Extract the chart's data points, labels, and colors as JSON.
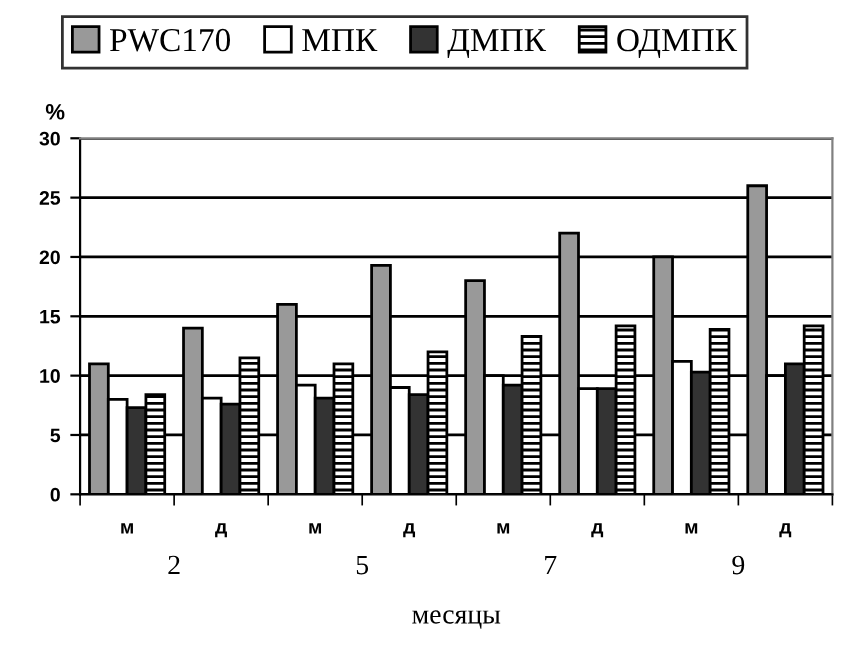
{
  "chart_data": {
    "type": "bar",
    "ylabel": "%",
    "xlabel": "месяцы",
    "categories": [
      "м",
      "д",
      "м",
      "д",
      "м",
      "д",
      "м",
      "д"
    ],
    "annotations": [
      "2",
      "5",
      "7",
      "9"
    ],
    "series": [
      {
        "name": "PWC170",
        "color": "#999999",
        "values": [
          11,
          14,
          16,
          19.3,
          18,
          22,
          20,
          26
        ]
      },
      {
        "name": "МПК",
        "color": "#ffffff",
        "values": [
          8,
          8.1,
          9.2,
          9,
          10,
          8.9,
          11.2,
          10
        ]
      },
      {
        "name": "ДМПК",
        "color": "#333333",
        "values": [
          7.3,
          7.6,
          8.1,
          8.4,
          9.2,
          8.9,
          10.3,
          11
        ]
      },
      {
        "name": "ОДМПК",
        "color": "#000000",
        "values": [
          8.4,
          11.5,
          11,
          12,
          13.3,
          14.2,
          13.9,
          14.2
        ]
      }
    ],
    "ylim": [
      0,
      30
    ],
    "yticks": [
      0,
      5,
      10,
      15,
      20,
      25,
      30
    ],
    "grid": "y",
    "legend": "top"
  }
}
